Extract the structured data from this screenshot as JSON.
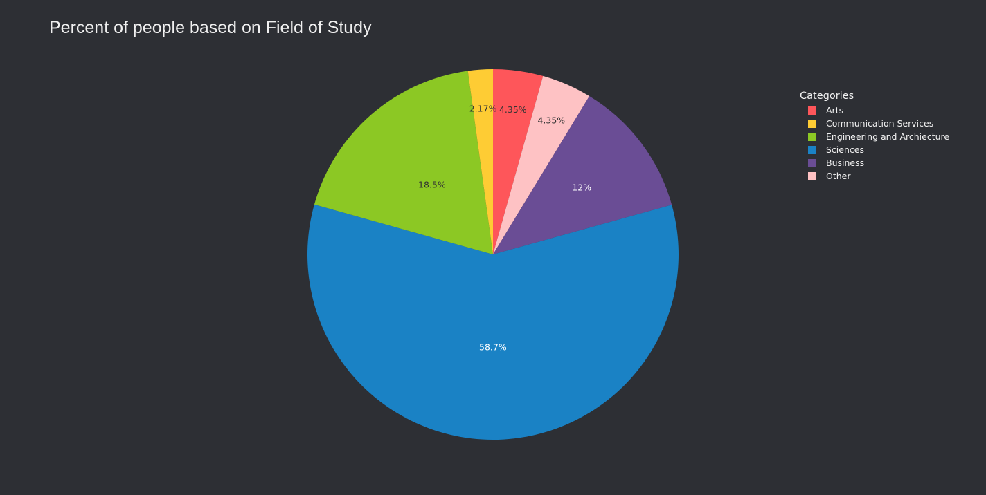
{
  "chart_data": {
    "type": "pie",
    "title": "Percent of people based on Field of Study",
    "legend_title": "Categories",
    "legend_position": "top-right",
    "slices": [
      {
        "label": "Arts",
        "value": 4.35,
        "text": "4.35%",
        "color": "#fe565a",
        "text_color": "#333333"
      },
      {
        "label": "Other",
        "value": 4.35,
        "text": "4.35%",
        "color": "#fec2c4",
        "text_color": "#333333"
      },
      {
        "label": "Business",
        "value": 12.0,
        "text": "12%",
        "color": "#6a4d95",
        "text_color": "#ffffff"
      },
      {
        "label": "Sciences",
        "value": 58.7,
        "text": "58.7%",
        "color": "#1a82c5",
        "text_color": "#ffffff"
      },
      {
        "label": "Engineering and Archiecture",
        "value": 18.5,
        "text": "18.5%",
        "color": "#8cc824",
        "text_color": "#333333"
      },
      {
        "label": "Communication Services",
        "value": 2.17,
        "text": "2.17%",
        "color": "#fecc34",
        "text_color": "#333333"
      }
    ],
    "legend_order": [
      "Arts",
      "Communication Services",
      "Engineering and Archiecture",
      "Sciences",
      "Business",
      "Other"
    ]
  }
}
